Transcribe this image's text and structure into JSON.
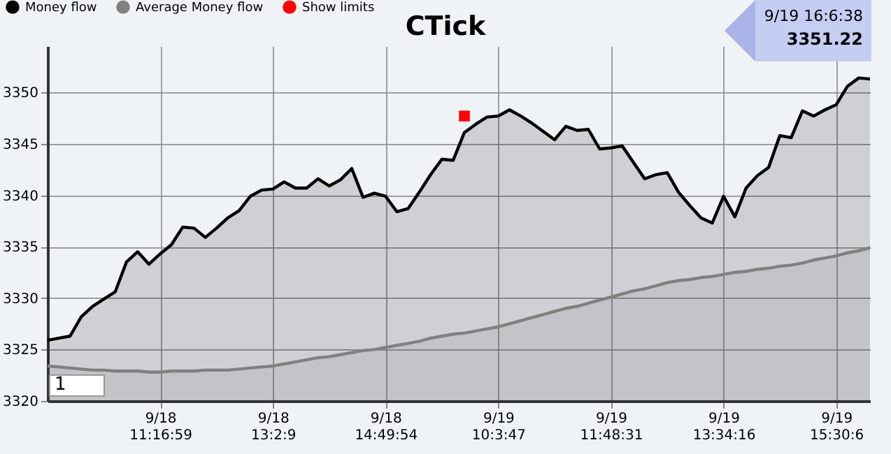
{
  "chart_data": {
    "type": "area",
    "title": "CTick",
    "categories": [
      null,
      null,
      null,
      null,
      null,
      null,
      null,
      null,
      null,
      null,
      "9/18 11:16:59",
      null,
      null,
      null,
      null,
      null,
      null,
      null,
      null,
      null,
      "9/18 13:2:9",
      null,
      null,
      null,
      null,
      null,
      null,
      null,
      null,
      null,
      "9/18 14:49:54",
      null,
      null,
      null,
      null,
      null,
      null,
      null,
      null,
      null,
      "9/19 10:3:47",
      null,
      null,
      null,
      null,
      null,
      null,
      null,
      null,
      null,
      "9/19 11:48:31",
      null,
      null,
      null,
      null,
      null,
      null,
      null,
      null,
      null,
      "9/19 13:34:16",
      null,
      null,
      null,
      null,
      null,
      null,
      null,
      null,
      null,
      "9/19 15:30:6",
      null,
      null,
      null
    ],
    "series": [
      {
        "name": "Money flow",
        "color": "#000000",
        "values": [
          3325.9,
          3326.1,
          3326.3,
          3328.2,
          3329.2,
          3329.9,
          3330.6,
          3333.5,
          3334.5,
          3333.3,
          3334.3,
          3335.2,
          3336.9,
          3336.8,
          3335.9,
          3336.8,
          3337.8,
          3338.5,
          3339.9,
          3340.5,
          3340.6,
          3341.3,
          3340.7,
          3340.7,
          3341.6,
          3340.9,
          3341.5,
          3342.6,
          3339.8,
          3340.2,
          3339.9,
          3338.4,
          3338.7,
          3340.3,
          3342.0,
          3343.5,
          3343.4,
          3346.1,
          3346.9,
          3347.6,
          3347.7,
          3348.3,
          3347.7,
          3347.0,
          3346.2,
          3345.4,
          3346.7,
          3346.3,
          3346.4,
          3344.5,
          3344.6,
          3344.8,
          3343.2,
          3341.6,
          3342.0,
          3342.2,
          3340.3,
          3339.0,
          3337.8,
          3337.3,
          3339.9,
          3337.9,
          3340.7,
          3341.9,
          3342.7,
          3345.8,
          3345.6,
          3348.2,
          3347.7,
          3348.3,
          3348.8,
          3350.6,
          3351.4,
          3351.3
        ]
      },
      {
        "name": "Average Money flow",
        "color": "#808080",
        "values": [
          3323.4,
          3323.3,
          3323.2,
          3323.1,
          3323.0,
          3323.0,
          3322.9,
          3322.9,
          3322.9,
          3322.8,
          3322.8,
          3322.9,
          3322.9,
          3322.9,
          3323.0,
          3323.0,
          3323.0,
          3323.1,
          3323.2,
          3323.3,
          3323.4,
          3323.6,
          3323.8,
          3324.0,
          3324.2,
          3324.3,
          3324.5,
          3324.7,
          3324.9,
          3325.0,
          3325.2,
          3325.4,
          3325.6,
          3325.8,
          3326.1,
          3326.3,
          3326.5,
          3326.6,
          3326.8,
          3327.0,
          3327.2,
          3327.5,
          3327.8,
          3328.1,
          3328.4,
          3328.7,
          3329.0,
          3329.2,
          3329.5,
          3329.8,
          3330.1,
          3330.4,
          3330.7,
          3330.9,
          3331.2,
          3331.5,
          3331.7,
          3331.8,
          3332.0,
          3332.1,
          3332.3,
          3332.5,
          3332.6,
          3332.8,
          3332.9,
          3333.1,
          3333.2,
          3333.4,
          3333.7,
          3333.9,
          3334.1,
          3334.4,
          3334.6,
          3334.9
        ]
      },
      {
        "name": "Show limits",
        "type": "scatter",
        "marker": "square",
        "color": "#ff0000",
        "values": [
          null,
          null,
          null,
          null,
          null,
          null,
          null,
          null,
          null,
          null,
          null,
          null,
          null,
          null,
          null,
          null,
          null,
          null,
          null,
          null,
          null,
          null,
          null,
          null,
          null,
          null,
          null,
          null,
          null,
          null,
          null,
          null,
          null,
          null,
          null,
          null,
          null,
          3347.7,
          null,
          null,
          null,
          null,
          null,
          null,
          null,
          null,
          null,
          null,
          null,
          null,
          null,
          null,
          null,
          null,
          null,
          null,
          null,
          null,
          null,
          null,
          null,
          null,
          null,
          null,
          null,
          null,
          null,
          null,
          null,
          null,
          null,
          null,
          null,
          null
        ]
      }
    ],
    "ylim": [
      3320,
      3354.5
    ],
    "yticks": [
      3320,
      3325,
      3330,
      3335,
      3340,
      3345,
      3350
    ],
    "grid": true,
    "legend": "top left",
    "annotations": [
      "9/19 16:6:38",
      "3351.22",
      "1"
    ]
  }
}
